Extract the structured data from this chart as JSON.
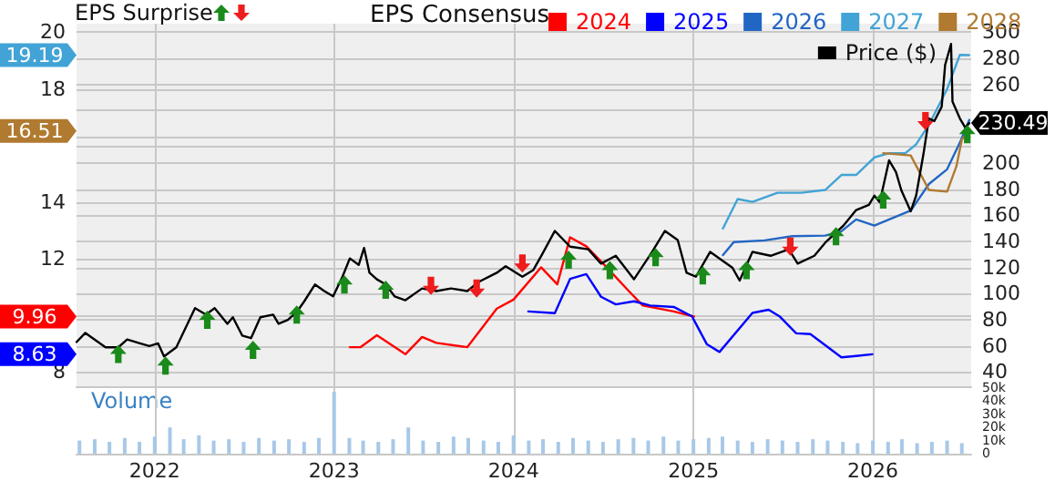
{
  "chart_data": [
    {
      "type": "line",
      "legend": "top",
      "legend_title": "EPS Consensus",
      "annotations": [
        "EPS Surprise",
        {
          "text": "19.19",
          "y": 19.19
        },
        {
          "text": "16.51",
          "y": 16.51
        },
        {
          "text": "9.96",
          "y": 9.96
        },
        {
          "text": "8.63",
          "y": 8.63
        }
      ],
      "grid": true,
      "tick_labels": "y",
      "marker": "none",
      "xlim": [
        "2021-07-26",
        "2026-07-20"
      ],
      "xticks": [
        {
          "value": "2022-01-01",
          "label": null
        },
        {
          "value": "2023-01-01",
          "label": null
        },
        {
          "value": "2024-01-01",
          "label": null
        },
        {
          "value": "2025-01-01",
          "label": null
        },
        {
          "value": "2026-01-01",
          "label": null
        }
      ],
      "ylim": [
        7.5,
        20.3
      ],
      "yticks": [
        8,
        {
          "value": 10,
          "label": null
        },
        12,
        14,
        {
          "value": 16,
          "label": null
        },
        18,
        20
      ],
      "y2lim": [
        29.2,
        306.5
      ],
      "y2ticks": [
        40,
        60,
        80,
        100,
        120,
        140,
        160,
        180,
        200,
        {
          "value": 220,
          "label": null
        },
        {
          "value": 240,
          "label": null
        },
        260,
        280,
        300
      ],
      "series": [
        {
          "name": "Price ($)",
          "color": "#000000",
          "axis": "y2",
          "x": [
            "2021-07-26",
            "2021-08-13",
            "2021-08-24",
            "2021-09-23",
            "2021-10-19",
            "2021-11-06",
            "2021-12-02",
            "2021-12-21",
            "2022-01-08",
            "2022-01-20",
            "2022-02-14",
            "2022-03-24",
            "2022-04-15",
            "2022-05-03",
            "2022-05-29",
            "2022-06-09",
            "2022-06-28",
            "2022-07-16",
            "2022-08-04",
            "2022-08-30",
            "2022-09-10",
            "2022-09-29",
            "2022-10-17",
            "2022-11-01",
            "2022-11-23",
            "2022-12-12",
            "2022-12-30",
            "2023-01-18",
            "2023-02-02",
            "2023-02-20",
            "2023-03-03",
            "2023-03-14",
            "2023-03-29",
            "2023-04-16",
            "2023-05-04",
            "2023-05-26",
            "2023-06-29",
            "2023-07-28",
            "2023-08-27",
            "2023-09-29",
            "2023-10-22",
            "2023-11-28",
            "2023-12-16",
            "2024-01-19",
            "2024-02-10",
            "2024-02-28",
            "2024-03-25",
            "2024-04-25",
            "2024-06-01",
            "2024-06-27",
            "2024-07-27",
            "2024-09-02",
            "2024-10-09",
            "2024-11-04",
            "2024-11-30",
            "2024-12-18",
            "2025-01-06",
            "2025-02-04",
            "2025-03-02",
            "2025-03-21",
            "2025-04-05",
            "2025-05-01",
            "2025-06-07",
            "2025-07-14",
            "2025-08-01",
            "2025-09-04",
            "2025-09-26",
            "2025-11-02",
            "2025-11-28",
            "2025-12-24",
            "2026-01-04",
            "2026-01-15",
            "2026-02-03",
            "2026-02-17",
            "2026-02-28",
            "2026-03-19",
            "2026-03-30",
            "2026-04-14",
            "2026-04-25",
            "2026-05-06",
            "2026-05-21",
            "2026-05-28",
            "2026-06-09",
            "2026-06-12",
            "2026-06-27",
            "2026-07-08",
            "2026-07-16"
          ],
          "values": [
            63,
            70,
            67,
            59,
            59,
            65,
            62,
            60,
            62,
            52,
            59,
            89,
            84,
            89,
            77,
            82,
            68,
            66,
            82,
            84,
            77,
            80,
            86,
            94,
            107,
            102,
            98,
            113,
            127,
            122,
            135,
            116,
            111,
            107,
            98,
            95,
            104,
            102,
            104,
            102,
            109,
            116,
            121,
            113,
            118,
            130,
            148,
            136,
            134,
            123,
            129,
            111,
            132,
            148,
            141,
            116,
            113,
            132,
            125,
            120,
            110,
            132,
            129,
            134,
            123,
            129,
            139,
            152,
            164,
            168,
            175,
            170,
            202,
            193,
            179,
            163,
            175,
            207,
            234,
            232,
            243,
            275,
            291,
            247,
            234,
            227,
            230.49
          ],
          "value_labels": [
            null,
            null,
            null,
            null,
            null,
            null,
            null,
            null,
            null,
            null,
            null,
            null,
            null,
            null,
            null,
            null,
            null,
            null,
            null,
            null,
            null,
            null,
            null,
            null,
            null,
            null,
            null,
            null,
            null,
            null,
            null,
            null,
            null,
            null,
            null,
            null,
            null,
            null,
            null,
            null,
            null,
            null,
            null,
            null,
            null,
            null,
            null,
            null,
            null,
            null,
            null,
            null,
            null,
            null,
            null,
            null,
            null,
            null,
            null,
            null,
            null,
            null,
            null,
            null,
            null,
            null,
            null,
            null,
            null,
            null,
            null,
            null,
            null,
            null,
            null,
            null,
            null,
            null,
            null,
            null,
            null,
            null,
            null,
            null,
            null,
            null,
            "230.49"
          ]
        },
        {
          "name": "2024",
          "color": "#ff0000",
          "x": [
            "2023-02-02",
            "2023-02-24",
            "2023-03-29",
            "2023-05-26",
            "2023-06-29",
            "2023-07-28",
            "2023-09-29",
            "2023-11-28",
            "2024-01-01",
            "2024-02-26",
            "2024-03-30",
            "2024-04-25",
            "2024-05-28",
            "2024-07-08",
            "2024-08-22",
            "2024-09-20",
            "2024-11-22",
            "2025-01-02"
          ],
          "values": [
            8.88,
            8.88,
            9.3,
            8.63,
            9.24,
            9.03,
            8.88,
            10.24,
            10.56,
            11.7,
            11.1,
            12.76,
            12.44,
            11.71,
            10.87,
            10.35,
            10.14,
            9.96
          ]
        },
        {
          "name": "2025",
          "color": "#0000ff",
          "x": [
            "2024-01-31",
            "2024-03-25",
            "2024-04-25",
            "2024-05-28",
            "2024-06-27",
            "2024-07-27",
            "2024-09-02",
            "2024-10-05",
            "2024-11-22",
            "2024-12-29",
            "2025-01-28",
            "2025-02-23",
            "2025-05-01",
            "2025-06-03",
            "2025-06-25",
            "2025-07-29",
            "2025-08-27",
            "2025-10-29",
            "2025-11-28",
            "2025-12-31"
          ],
          "values": [
            10.14,
            10.08,
            11.29,
            11.46,
            10.66,
            10.39,
            10.5,
            10.35,
            10.3,
            9.97,
            8.99,
            8.71,
            10.09,
            10.2,
            9.97,
            9.37,
            9.34,
            8.52,
            8.57,
            8.63
          ]
        },
        {
          "name": "2026",
          "color": "#2266c4",
          "x": [
            "2025-03-02",
            "2025-03-24",
            "2025-05-26",
            "2025-07-21",
            "2025-09-26",
            "2025-10-29",
            "2025-11-28",
            "2026-01-04",
            "2026-03-19",
            "2026-04-25",
            "2026-06-01",
            "2026-06-27",
            "2026-07-16"
          ],
          "values": [
            12.13,
            12.59,
            12.65,
            12.8,
            12.82,
            12.97,
            13.39,
            13.17,
            13.7,
            14.64,
            15.16,
            16.1,
            16.9
          ]
        },
        {
          "name": "2027",
          "color": "#42a3d6",
          "x": [
            "2025-03-02",
            "2025-04-01",
            "2025-05-01",
            "2025-06-21",
            "2025-08-08",
            "2025-09-26",
            "2025-10-29",
            "2025-11-28",
            "2026-01-04",
            "2026-02-03",
            "2026-03-08",
            "2026-03-30",
            "2026-04-25",
            "2026-06-01",
            "2026-06-27",
            "2026-07-16"
          ],
          "values": [
            13.07,
            14.11,
            14.01,
            14.33,
            14.33,
            14.43,
            14.96,
            14.96,
            15.58,
            15.73,
            15.73,
            16.04,
            16.73,
            17.99,
            19.2,
            19.19
          ]
        },
        {
          "name": "2028",
          "color": "#b07a30",
          "x": [
            "2026-01-22",
            "2026-03-19",
            "2026-04-25",
            "2026-06-01",
            "2026-06-20",
            "2026-07-01",
            "2026-07-16"
          ],
          "values": [
            15.73,
            15.65,
            14.43,
            14.37,
            15.27,
            16.21,
            16.51
          ]
        },
        {
          "type": "scatter",
          "color": "#1a8a1a",
          "axis": "y2",
          "marker": "triangle",
          "x": [
            "2021-10-19",
            "2022-01-23",
            "2022-04-18",
            "2022-07-20",
            "2022-10-17",
            "2023-01-22",
            "2023-04-16",
            "2024-04-22",
            "2024-07-15",
            "2024-10-16",
            "2025-01-20",
            "2025-04-19",
            "2025-10-18",
            "2026-01-22",
            "2026-07-12"
          ],
          "values": [
            54,
            45,
            80,
            57,
            84,
            107,
            103,
            126,
            118,
            128,
            114,
            118,
            144,
            172,
            222
          ]
        },
        {
          "type": "scatter",
          "color": "#ee1c1c",
          "axis": "y2",
          "marker": "triangle",
          "x": [
            "2023-07-17",
            "2023-10-18",
            "2024-01-19",
            "2025-07-17",
            "2026-04-18"
          ],
          "values": [
            106,
            104,
            123,
            136,
            232
          ]
        }
      ]
    },
    {
      "type": "bar",
      "title": "Volume",
      "grid": "x",
      "xlim": [
        "2021-07-26",
        "2026-07-20"
      ],
      "xticks": [
        {
          "value": "2022-01-01",
          "label": "2022"
        },
        {
          "value": "2023-01-01",
          "label": "2023"
        },
        {
          "value": "2024-01-01",
          "label": "2024"
        },
        {
          "value": "2025-01-01",
          "label": "2025"
        },
        {
          "value": "2026-01-01",
          "label": "2026"
        }
      ],
      "ylim": [
        0,
        50000
      ],
      "yticks": [
        0,
        {
          "value": 10000,
          "label": "10k"
        },
        {
          "value": 20000,
          "label": "20k"
        },
        {
          "value": 30000,
          "label": "30k"
        },
        {
          "value": 40000,
          "label": "40k"
        },
        {
          "value": 50000,
          "label": "50k"
        }
      ],
      "series": [
        {
          "color": "#a8c8e8",
          "x": [
            "2021-08-01",
            "2021-09-01",
            "2021-10-01",
            "2021-11-01",
            "2021-12-01",
            "2022-01-01",
            "2022-02-01",
            "2022-03-01",
            "2022-04-01",
            "2022-05-01",
            "2022-06-01",
            "2022-07-01",
            "2022-08-01",
            "2022-09-01",
            "2022-10-01",
            "2022-11-01",
            "2022-12-01",
            "2023-01-01",
            "2023-02-01",
            "2023-03-01",
            "2023-04-01",
            "2023-05-01",
            "2023-06-01",
            "2023-07-01",
            "2023-08-01",
            "2023-09-01",
            "2023-10-01",
            "2023-11-01",
            "2023-12-01",
            "2024-01-01",
            "2024-02-01",
            "2024-03-01",
            "2024-04-01",
            "2024-05-01",
            "2024-06-01",
            "2024-07-01",
            "2024-08-01",
            "2024-09-01",
            "2024-10-01",
            "2024-11-01",
            "2024-12-01",
            "2025-01-01",
            "2025-02-01",
            "2025-03-01",
            "2025-04-01",
            "2025-05-01",
            "2025-06-01",
            "2025-07-01",
            "2025-08-01",
            "2025-09-01",
            "2025-10-01",
            "2025-11-01",
            "2025-12-01",
            "2026-01-01",
            "2026-02-01",
            "2026-03-01",
            "2026-04-01",
            "2026-05-01",
            "2026-06-01",
            "2026-07-01"
          ],
          "values": [
            10000,
            11000,
            9000,
            12000,
            9000,
            13000,
            20000,
            11000,
            14000,
            10000,
            11000,
            9000,
            12000,
            10000,
            11000,
            9000,
            12000,
            47000,
            12000,
            10000,
            9000,
            11000,
            20000,
            10000,
            9000,
            13000,
            12000,
            10000,
            9000,
            14000,
            10000,
            11000,
            9000,
            12000,
            10000,
            9000,
            11000,
            12000,
            10000,
            13000,
            10000,
            11000,
            12000,
            13000,
            10000,
            9000,
            11000,
            10000,
            9000,
            11000,
            10000,
            9000,
            8000,
            10000,
            9000,
            11000,
            8000,
            9000,
            10000,
            8000
          ]
        }
      ]
    }
  ]
}
